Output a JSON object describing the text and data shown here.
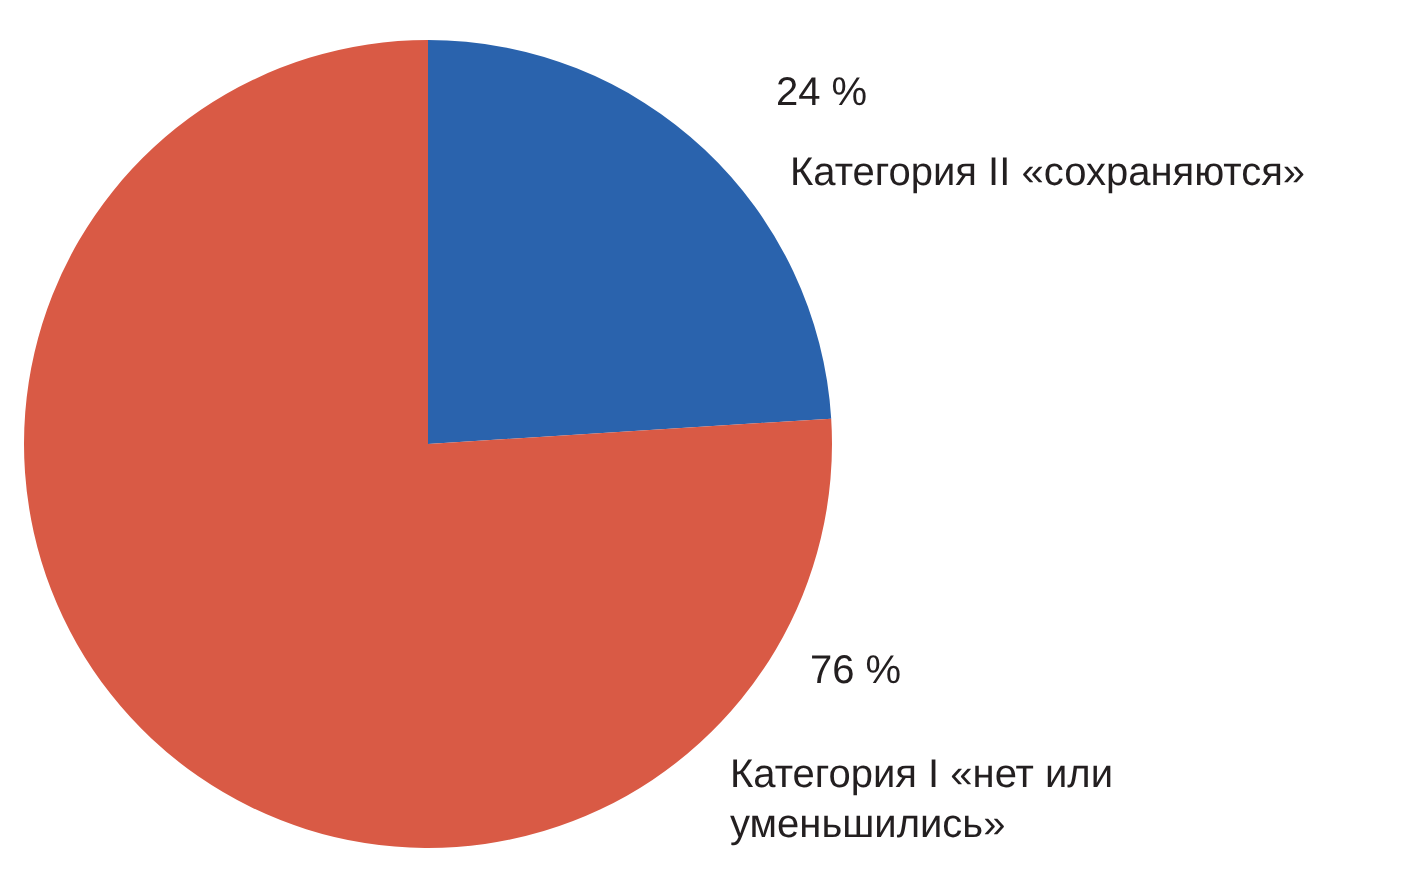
{
  "chart_data": {
    "type": "pie",
    "categories": [
      "Категория II «сохраняются»",
      "Категория I «нет или уменьшились»"
    ],
    "values": [
      24,
      76
    ],
    "colors": [
      "#2a63ad",
      "#d95a45"
    ],
    "value_labels": [
      "24 %",
      "76 %"
    ],
    "legend": false
  }
}
